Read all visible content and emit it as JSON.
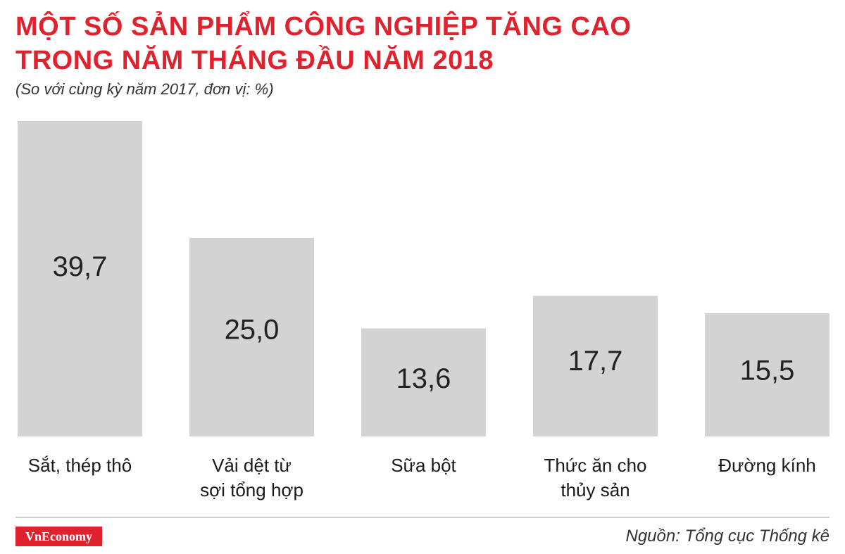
{
  "chart_data": {
    "type": "bar",
    "title_lines": [
      "MỘT SỐ SẢN PHẨM CÔNG NGHIỆP TĂNG CAO",
      "TRONG NĂM THÁNG ĐẦU NĂM 2018"
    ],
    "subtitle": "(So với cùng kỳ năm 2017, đơn vị: %)",
    "categories": [
      [
        "Sắt, thép thô"
      ],
      [
        "Vải dệt từ",
        "sợi tổng hợp"
      ],
      [
        "Sữa bột"
      ],
      [
        "Thức ăn cho",
        "thủy sản"
      ],
      [
        "Đường kính"
      ]
    ],
    "values": [
      39.7,
      25.0,
      13.6,
      17.7,
      15.5
    ],
    "value_labels": [
      "39,7",
      "25,0",
      "13,6",
      "17,7",
      "15,5"
    ],
    "ylim": [
      0,
      39.7
    ],
    "grid": false,
    "bar_color": "#d3d3d3"
  },
  "footer": {
    "logo_text": "VnEconomy",
    "source": "Nguồn: Tổng cục Thống kê"
  },
  "colors": {
    "accent": "#e0212e",
    "bar": "#d3d3d3"
  }
}
